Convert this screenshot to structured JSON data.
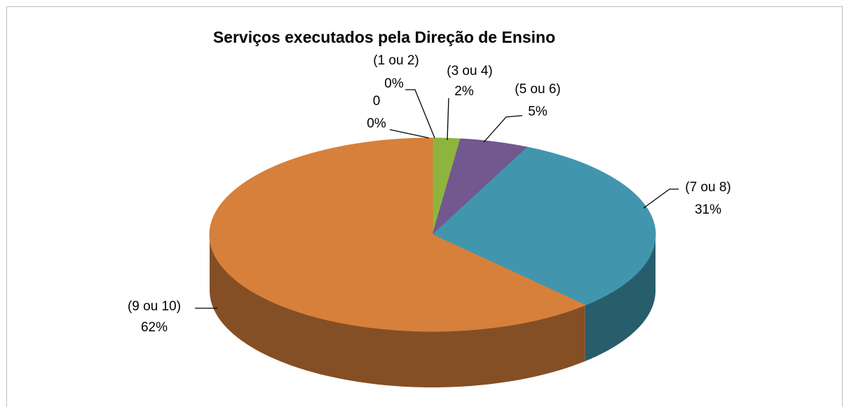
{
  "chart_data": {
    "type": "pie",
    "title": "Serviços executados pela Direção de Ensino",
    "categories": [
      "0",
      "(1 ou 2)",
      "(3 ou 4)",
      "(5 ou 6)",
      "(7 ou 8)",
      "(9 ou 10)"
    ],
    "values": [
      0,
      0,
      2,
      5,
      31,
      62
    ],
    "value_labels": [
      "0%",
      "0%",
      "2%",
      "5%",
      "31%",
      "62%"
    ],
    "colors": [
      "#4f81bd",
      "#c0504d",
      "#8fb43d",
      "#73578f",
      "#4196ae",
      "#d6803b"
    ]
  }
}
